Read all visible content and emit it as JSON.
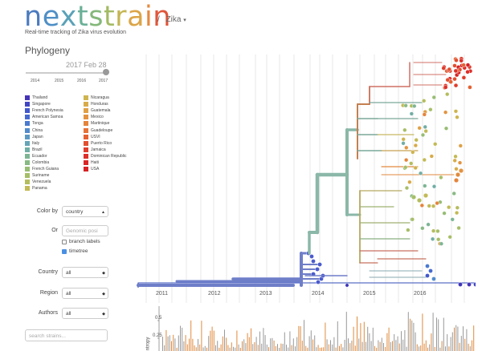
{
  "header": {
    "logo_letters": [
      "n",
      "e",
      "x",
      "t",
      "s",
      "t",
      "r",
      "a",
      "i",
      "n"
    ],
    "logo_colors": [
      "#4b7bbf",
      "#4e8fc6",
      "#5aa2b8",
      "#6ab097",
      "#84b87a",
      "#a3bb64",
      "#c4b552",
      "#dca548",
      "#e68a3e",
      "#e0563a"
    ],
    "breadcrumb_sep": "/",
    "dataset": "Zika",
    "dataset_chevron": "▾",
    "tagline": "Real-time tracking of Zika virus evolution"
  },
  "sidebar": {
    "title": "Phylogeny",
    "date": "2017 Feb 28",
    "years": [
      "2014",
      "2015",
      "2016",
      "2017"
    ],
    "legend": [
      {
        "label": "Thailand",
        "color": "#4633b8"
      },
      {
        "label": "Singapore",
        "color": "#4145c4"
      },
      {
        "label": "French Polynesia",
        "color": "#4258cc"
      },
      {
        "label": "American Samoa",
        "color": "#4569d0"
      },
      {
        "label": "Tonga",
        "color": "#4a7ad0"
      },
      {
        "label": "China",
        "color": "#528bcc"
      },
      {
        "label": "Japan",
        "color": "#5b99c4"
      },
      {
        "label": "Italy",
        "color": "#66a5b6"
      },
      {
        "label": "Brazil",
        "color": "#71aea5"
      },
      {
        "label": "Ecuador",
        "color": "#7db594"
      },
      {
        "label": "Colombia",
        "color": "#89ba84"
      },
      {
        "label": "French Guiana",
        "color": "#97bd74"
      },
      {
        "label": "Suriname",
        "color": "#a6be67"
      },
      {
        "label": "Venezuela",
        "color": "#b4bd5d"
      },
      {
        "label": "Panama",
        "color": "#c2ba55"
      },
      {
        "label": "Nicaragua",
        "color": "#ceb44f"
      },
      {
        "label": "Honduras",
        "color": "#d8ab4a"
      },
      {
        "label": "Guatemala",
        "color": "#dfa045"
      },
      {
        "label": "Mexico",
        "color": "#e39340"
      },
      {
        "label": "Martinique",
        "color": "#e5843b"
      },
      {
        "label": "Guadeloupe",
        "color": "#e57337"
      },
      {
        "label": "USVI",
        "color": "#e46133"
      },
      {
        "label": "Puerto Rico",
        "color": "#e24f30"
      },
      {
        "label": "Jamaica",
        "color": "#df3d2d"
      },
      {
        "label": "Dominican Republic",
        "color": "#dc2f2a"
      },
      {
        "label": "Haiti",
        "color": "#d92728"
      },
      {
        "label": "USA",
        "color": "#d62226"
      }
    ],
    "color_by_label": "Color by",
    "color_by_value": "country",
    "or_label": "Or",
    "genomic_placeholder": "Genomic posi",
    "branch_labels": "branch labels",
    "timetree": "timetree",
    "country_label": "Country",
    "country_value": "all",
    "region_label": "Region",
    "region_value": "all",
    "authors_label": "Authors",
    "authors_value": "all",
    "search_placeholder": "search strains..."
  },
  "tree": {
    "years": [
      "2011",
      "2012",
      "2013",
      "2014",
      "2015",
      "2016"
    ]
  },
  "entropy": {
    "ytick_labels": [
      "0.5",
      "0.25"
    ],
    "ylabel": "ntropy"
  }
}
